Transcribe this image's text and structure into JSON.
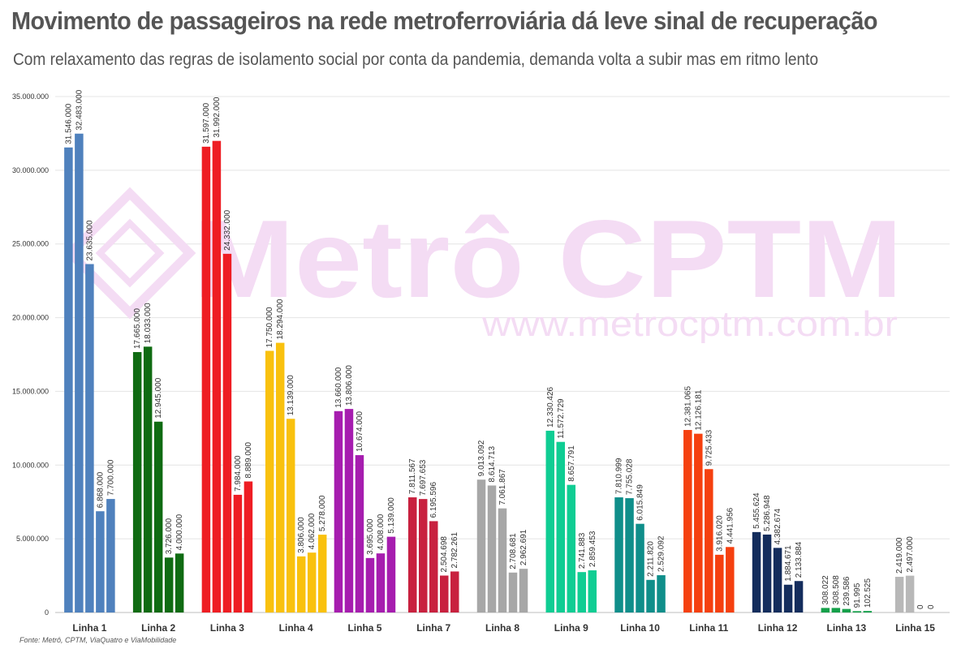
{
  "title": "Movimento de passageiros na rede metroferroviária dá leve sinal de recuperação",
  "subtitle": "Com relaxamento das regras de isolamento social por conta da pandemia, demanda volta a subir mas em ritmo lento",
  "source": "Fonte: Metrô, CPTM, ViaQuatro e ViaMobilidade",
  "watermark": {
    "brand": "Metrô CPTM",
    "url": "www.metrocptm.com.br",
    "color": "#f4dcf4"
  },
  "chart_data": {
    "type": "bar",
    "ylim": [
      0,
      35000000
    ],
    "yticks": [
      0,
      5000000,
      10000000,
      15000000,
      20000000,
      25000000,
      30000000,
      35000000
    ],
    "ytick_labels": [
      "0",
      "5.000.000",
      "10.000.000",
      "15.000.000",
      "20.000.000",
      "25.000.000",
      "30.000.000",
      "35.000.000"
    ],
    "grid": true,
    "legend": "none",
    "xlabel": "",
    "ylabel": "",
    "groups": [
      {
        "category": "Linha 1",
        "color": "#4f81bd",
        "values": [
          31546000,
          32483000,
          23635000,
          6868000,
          7700000
        ],
        "labels": [
          "31.546.000",
          "32.483.000",
          "23.635.000",
          "6.868.000",
          "7.700.000"
        ]
      },
      {
        "category": "Linha 2",
        "color": "#0f6b12",
        "values": [
          17665000,
          18033000,
          12945000,
          3726000,
          4000000
        ],
        "labels": [
          "17.665.000",
          "18.033.000",
          "12.945.000",
          "3.726.000",
          "4.000.000"
        ]
      },
      {
        "category": "Linha 3",
        "color": "#ee1d23",
        "values": [
          31597000,
          31992000,
          24332000,
          7984000,
          8889000
        ],
        "labels": [
          "31.597.000",
          "31.992.000",
          "24.332.000",
          "7.984.000",
          "8.889.000"
        ]
      },
      {
        "category": "Linha 4",
        "color": "#f9c10e",
        "values": [
          17750000,
          18294000,
          13139000,
          3806000,
          4062000,
          5278000
        ],
        "labels": [
          "17.750.000",
          "18.294.000",
          "13.139.000",
          "3.806.000",
          "4.062.000",
          "5.278.000"
        ]
      },
      {
        "category": "Linha 5",
        "color": "#a61daf",
        "values": [
          13660000,
          13806000,
          10674000,
          3695000,
          4008000,
          5139000
        ],
        "labels": [
          "13.660.000",
          "13.806.000",
          "10.674.000",
          "3.695.000",
          "4.008.000",
          "5.139.000"
        ]
      },
      {
        "category": "Linha 7",
        "color": "#c8213f",
        "values": [
          7811567,
          7697653,
          6195596,
          2504698,
          2782261
        ],
        "labels": [
          "7.811.567",
          "7.697.653",
          "6.195.596",
          "2.504.698",
          "2.782.261"
        ]
      },
      {
        "category": "Linha 8",
        "color": "#a7a7a7",
        "values": [
          9013092,
          8614713,
          7061867,
          2708681,
          2962691
        ],
        "labels": [
          "9.013.092",
          "8.614.713",
          "7.061.867",
          "2.708.681",
          "2.962.691"
        ]
      },
      {
        "category": "Linha 9",
        "color": "#0fcd93",
        "values": [
          12330426,
          11572729,
          8657791,
          2741883,
          2859453
        ],
        "labels": [
          "12.330.426",
          "11.572.729",
          "8.657.791",
          "2.741.883",
          "2.859.453"
        ]
      },
      {
        "category": "Linha 10",
        "color": "#0f8e8a",
        "values": [
          7810999,
          7755028,
          6015849,
          2211820,
          2529092
        ],
        "labels": [
          "7.810.999",
          "7.755.028",
          "6.015.849",
          "2.211.820",
          "2.529.092"
        ]
      },
      {
        "category": "Linha 11",
        "color": "#f5400f",
        "values": [
          12381065,
          12126181,
          9725433,
          3916020,
          4441956
        ],
        "labels": [
          "12.381.065",
          "12.126.181",
          "9.725.433",
          "3.916.020",
          "4.441.956"
        ]
      },
      {
        "category": "Linha 12",
        "color": "#142d5d",
        "values": [
          5455624,
          5286948,
          4382674,
          1884671,
          2133884
        ],
        "labels": [
          "5.455.624",
          "5.286.948",
          "4.382.674",
          "1.884.671",
          "2.133.884"
        ]
      },
      {
        "category": "Linha 13",
        "color": "#15a04a",
        "values": [
          308022,
          308508,
          239586,
          91995,
          102525
        ],
        "labels": [
          "308.022",
          "308.508",
          "239.586",
          "91.995",
          "102.525"
        ]
      },
      {
        "category": "Linha 15",
        "color": "#b8b8b8",
        "values": [
          2419000,
          2497000,
          0,
          0
        ],
        "labels": [
          "2.419.000",
          "2.497.000",
          "0",
          "0"
        ]
      }
    ]
  }
}
